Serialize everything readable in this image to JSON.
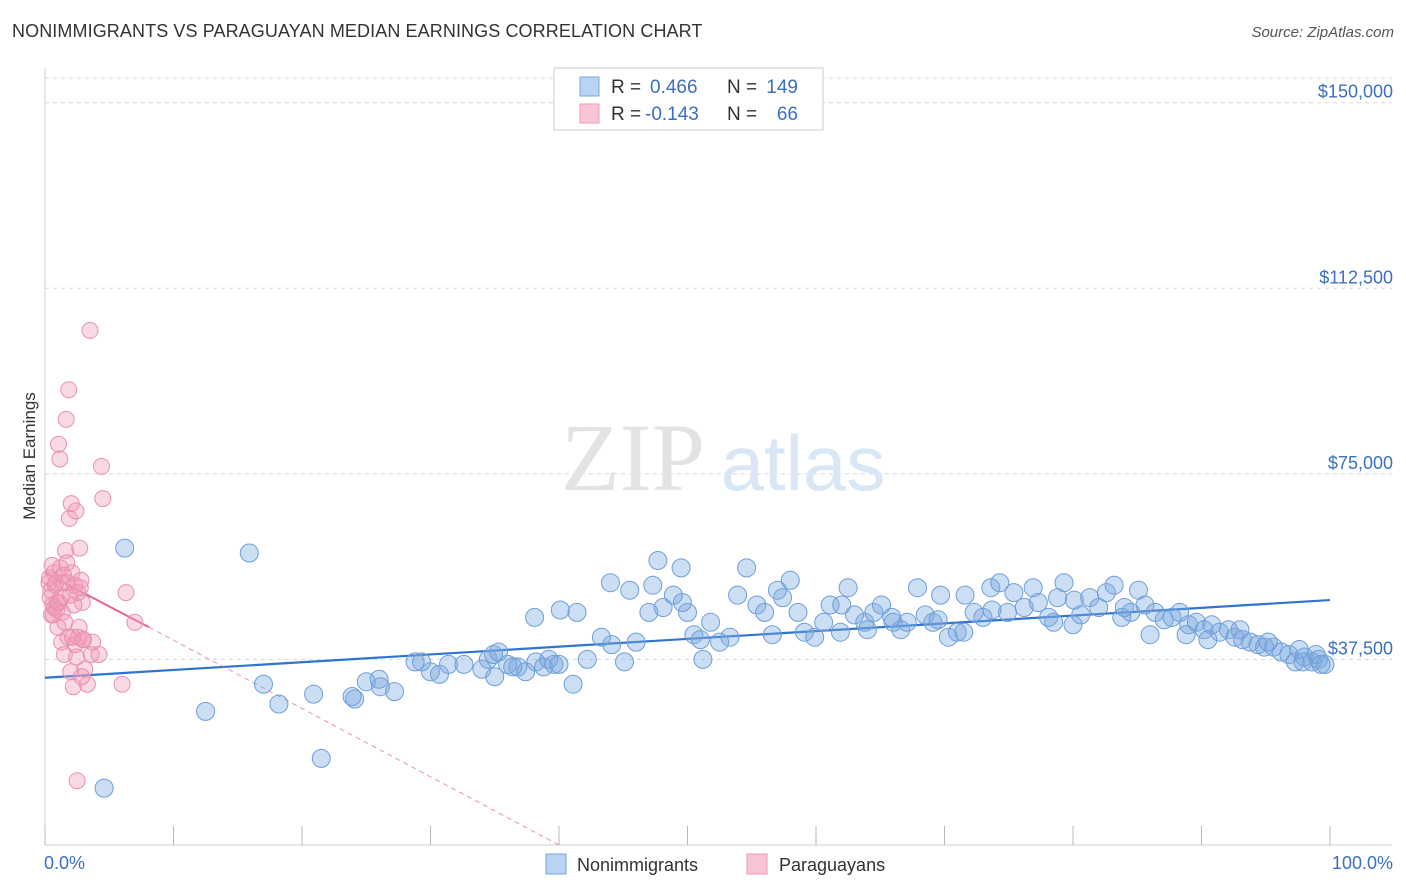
{
  "title": "NONIMMIGRANTS VS PARAGUAYAN MEDIAN EARNINGS CORRELATION CHART",
  "source": "Source: ZipAtlas.com",
  "watermark": {
    "zip": "ZIP",
    "atlas": "atlas"
  },
  "colors": {
    "blue": "#7aa7e0",
    "blue_line": "#2f74d0",
    "pink": "#f09ab8",
    "pink_line": "#e26593",
    "axis_text": "#3b6fc4",
    "grid": "#d8d8d8"
  },
  "legend": {
    "rows": [
      {
        "r_label": "R = ",
        "r_value": "0.466",
        "n_label": "N = ",
        "n_value": "149"
      },
      {
        "r_label": "R = ",
        "r_value": "-0.143",
        "n_label": "N = ",
        "n_value": "66"
      }
    ]
  },
  "chart_data": {
    "type": "scatter",
    "xlabel": "",
    "ylabel": "Median Earnings",
    "xlim": [
      0,
      100
    ],
    "ylim": [
      0,
      155000
    ],
    "x_tick_labels": [
      "0.0%",
      "100.0%"
    ],
    "y_ticks": [
      37500,
      75000,
      112500,
      150000
    ],
    "y_tick_labels": [
      "$37,500",
      "$75,000",
      "$112,500",
      "$150,000"
    ],
    "grid": true,
    "series": [
      {
        "name": "Nonimmigrants",
        "color": "#7aa7e0",
        "trend": {
          "x": [
            0,
            100
          ],
          "y": [
            33800,
            49500
          ]
        },
        "x": [
          4.6,
          12.5,
          15.9,
          18.2,
          20.9,
          24.1,
          23.9,
          25.0,
          26.1,
          27.2,
          28.8,
          30.0,
          30.7,
          31.4,
          32.6,
          34.0,
          34.5,
          34.9,
          35.0,
          35.3,
          36.0,
          36.8,
          37.4,
          38.1,
          38.2,
          38.8,
          39.2,
          39.6,
          40.0,
          41.1,
          41.4,
          42.2,
          43.3,
          44.0,
          44.1,
          45.1,
          46.0,
          47.0,
          47.3,
          48.1,
          48.9,
          49.5,
          50.0,
          50.5,
          51.2,
          51.8,
          52.5,
          53.3,
          53.9,
          54.6,
          55.4,
          56.0,
          56.6,
          57.4,
          58.0,
          58.6,
          59.1,
          59.9,
          60.6,
          61.1,
          61.9,
          62.5,
          63.0,
          63.8,
          64.5,
          65.1,
          65.9,
          66.6,
          67.1,
          67.9,
          68.5,
          69.1,
          69.7,
          70.3,
          71.0,
          71.6,
          72.3,
          73.0,
          73.6,
          74.3,
          74.9,
          75.4,
          76.2,
          76.9,
          77.3,
          78.1,
          78.8,
          79.3,
          80.1,
          80.6,
          81.3,
          82.0,
          82.6,
          83.2,
          83.8,
          84.5,
          85.1,
          85.6,
          86.4,
          87.1,
          87.7,
          88.3,
          89.0,
          89.6,
          90.2,
          90.8,
          91.4,
          92.1,
          92.6,
          93.2,
          93.8,
          94.4,
          94.9,
          95.6,
          96.2,
          96.8,
          97.3,
          98.0,
          98.6,
          99.1,
          99.6,
          6.2,
          21.5,
          17.0,
          26.0,
          29.3,
          36.4,
          40.1,
          45.5,
          47.7,
          49.6,
          51.0,
          57.0,
          62.0,
          64.0,
          66.0,
          69.5,
          71.5,
          73.7,
          78.5,
          80.0,
          84.0,
          86.0,
          88.8,
          90.5,
          93.0,
          95.2,
          97.6,
          98.9,
          99.3,
          97.9
        ],
        "y": [
          11500,
          27000,
          59000,
          28500,
          30500,
          29500,
          30000,
          33000,
          32000,
          31000,
          37000,
          35000,
          34500,
          36500,
          36500,
          35500,
          37500,
          38500,
          34000,
          39000,
          36500,
          36000,
          35000,
          46000,
          37000,
          36000,
          37500,
          36500,
          36500,
          32500,
          47000,
          37500,
          42000,
          53000,
          40500,
          37000,
          41000,
          47000,
          52500,
          48000,
          50500,
          56000,
          47000,
          42500,
          37500,
          45000,
          41000,
          42000,
          50500,
          56000,
          48500,
          47000,
          42500,
          50000,
          53500,
          47000,
          43000,
          42000,
          45000,
          48500,
          43000,
          52000,
          46500,
          45000,
          47000,
          48500,
          46000,
          43500,
          45000,
          52000,
          46500,
          45000,
          50500,
          42000,
          43000,
          50500,
          47000,
          46000,
          52000,
          53000,
          47000,
          51000,
          48000,
          52000,
          49000,
          46000,
          50000,
          53000,
          49500,
          46500,
          50000,
          48000,
          51000,
          52500,
          46000,
          47000,
          51500,
          48500,
          47000,
          45500,
          46000,
          47000,
          44500,
          45000,
          43500,
          44500,
          43000,
          43500,
          42000,
          41500,
          41000,
          40500,
          40000,
          40000,
          39000,
          38500,
          37000,
          38000,
          37000,
          37500,
          36500,
          60000,
          17500,
          32500,
          33500,
          37000,
          36000,
          47500,
          51500,
          57500,
          49000,
          41500,
          51500,
          48500,
          43500,
          45000,
          45500,
          43000,
          47500,
          45000,
          44500,
          48000,
          42500,
          42500,
          41500,
          43500,
          41000,
          39500,
          38500,
          36500,
          37000
        ]
      },
      {
        "name": "Paraguayans",
        "color": "#f09ab8",
        "trend": {
          "x": [
            0,
            8.1
          ],
          "y": [
            55000,
            44000
          ]
        },
        "trend_ext": {
          "x": [
            8.1,
            40
          ],
          "y": [
            44000,
            0
          ]
        },
        "x": [
          0.3,
          0.4,
          0.5,
          0.6,
          0.7,
          0.8,
          0.9,
          1.0,
          1.1,
          1.2,
          1.3,
          1.4,
          1.5,
          1.6,
          1.7,
          1.8,
          1.9,
          2.0,
          2.1,
          2.2,
          2.3,
          2.4,
          2.5,
          2.6,
          2.7,
          2.8,
          2.9,
          3.0,
          3.1,
          3.3,
          3.5,
          3.6,
          3.7,
          4.2,
          4.4,
          4.5,
          6.0,
          6.3,
          7.0,
          0.35,
          0.45,
          0.55,
          0.65,
          0.75,
          0.85,
          0.95,
          1.05,
          1.15,
          1.25,
          1.35,
          1.45,
          1.55,
          1.65,
          1.75,
          1.85,
          1.95,
          2.05,
          2.15,
          2.25,
          2.35,
          2.45,
          2.55,
          2.65,
          2.75,
          2.85,
          2.95
        ],
        "y": [
          53000,
          50000,
          46500,
          48500,
          55000,
          52500,
          47500,
          44000,
          49000,
          56000,
          41000,
          53000,
          38500,
          59500,
          57000,
          42000,
          66000,
          35000,
          55000,
          32000,
          52500,
          67500,
          13000,
          42000,
          60000,
          53500,
          49000,
          41500,
          35500,
          32500,
          104000,
          38500,
          41000,
          38500,
          76500,
          70000,
          32500,
          51000,
          45000,
          54000,
          51500,
          56500,
          46500,
          48000,
          53000,
          49000,
          81000,
          78000,
          50000,
          47000,
          54500,
          45000,
          86000,
          53000,
          92000,
          50500,
          69000,
          42000,
          48500,
          40500,
          38000,
          51000,
          44000,
          52000,
          34000,
          41500
        ]
      }
    ]
  }
}
